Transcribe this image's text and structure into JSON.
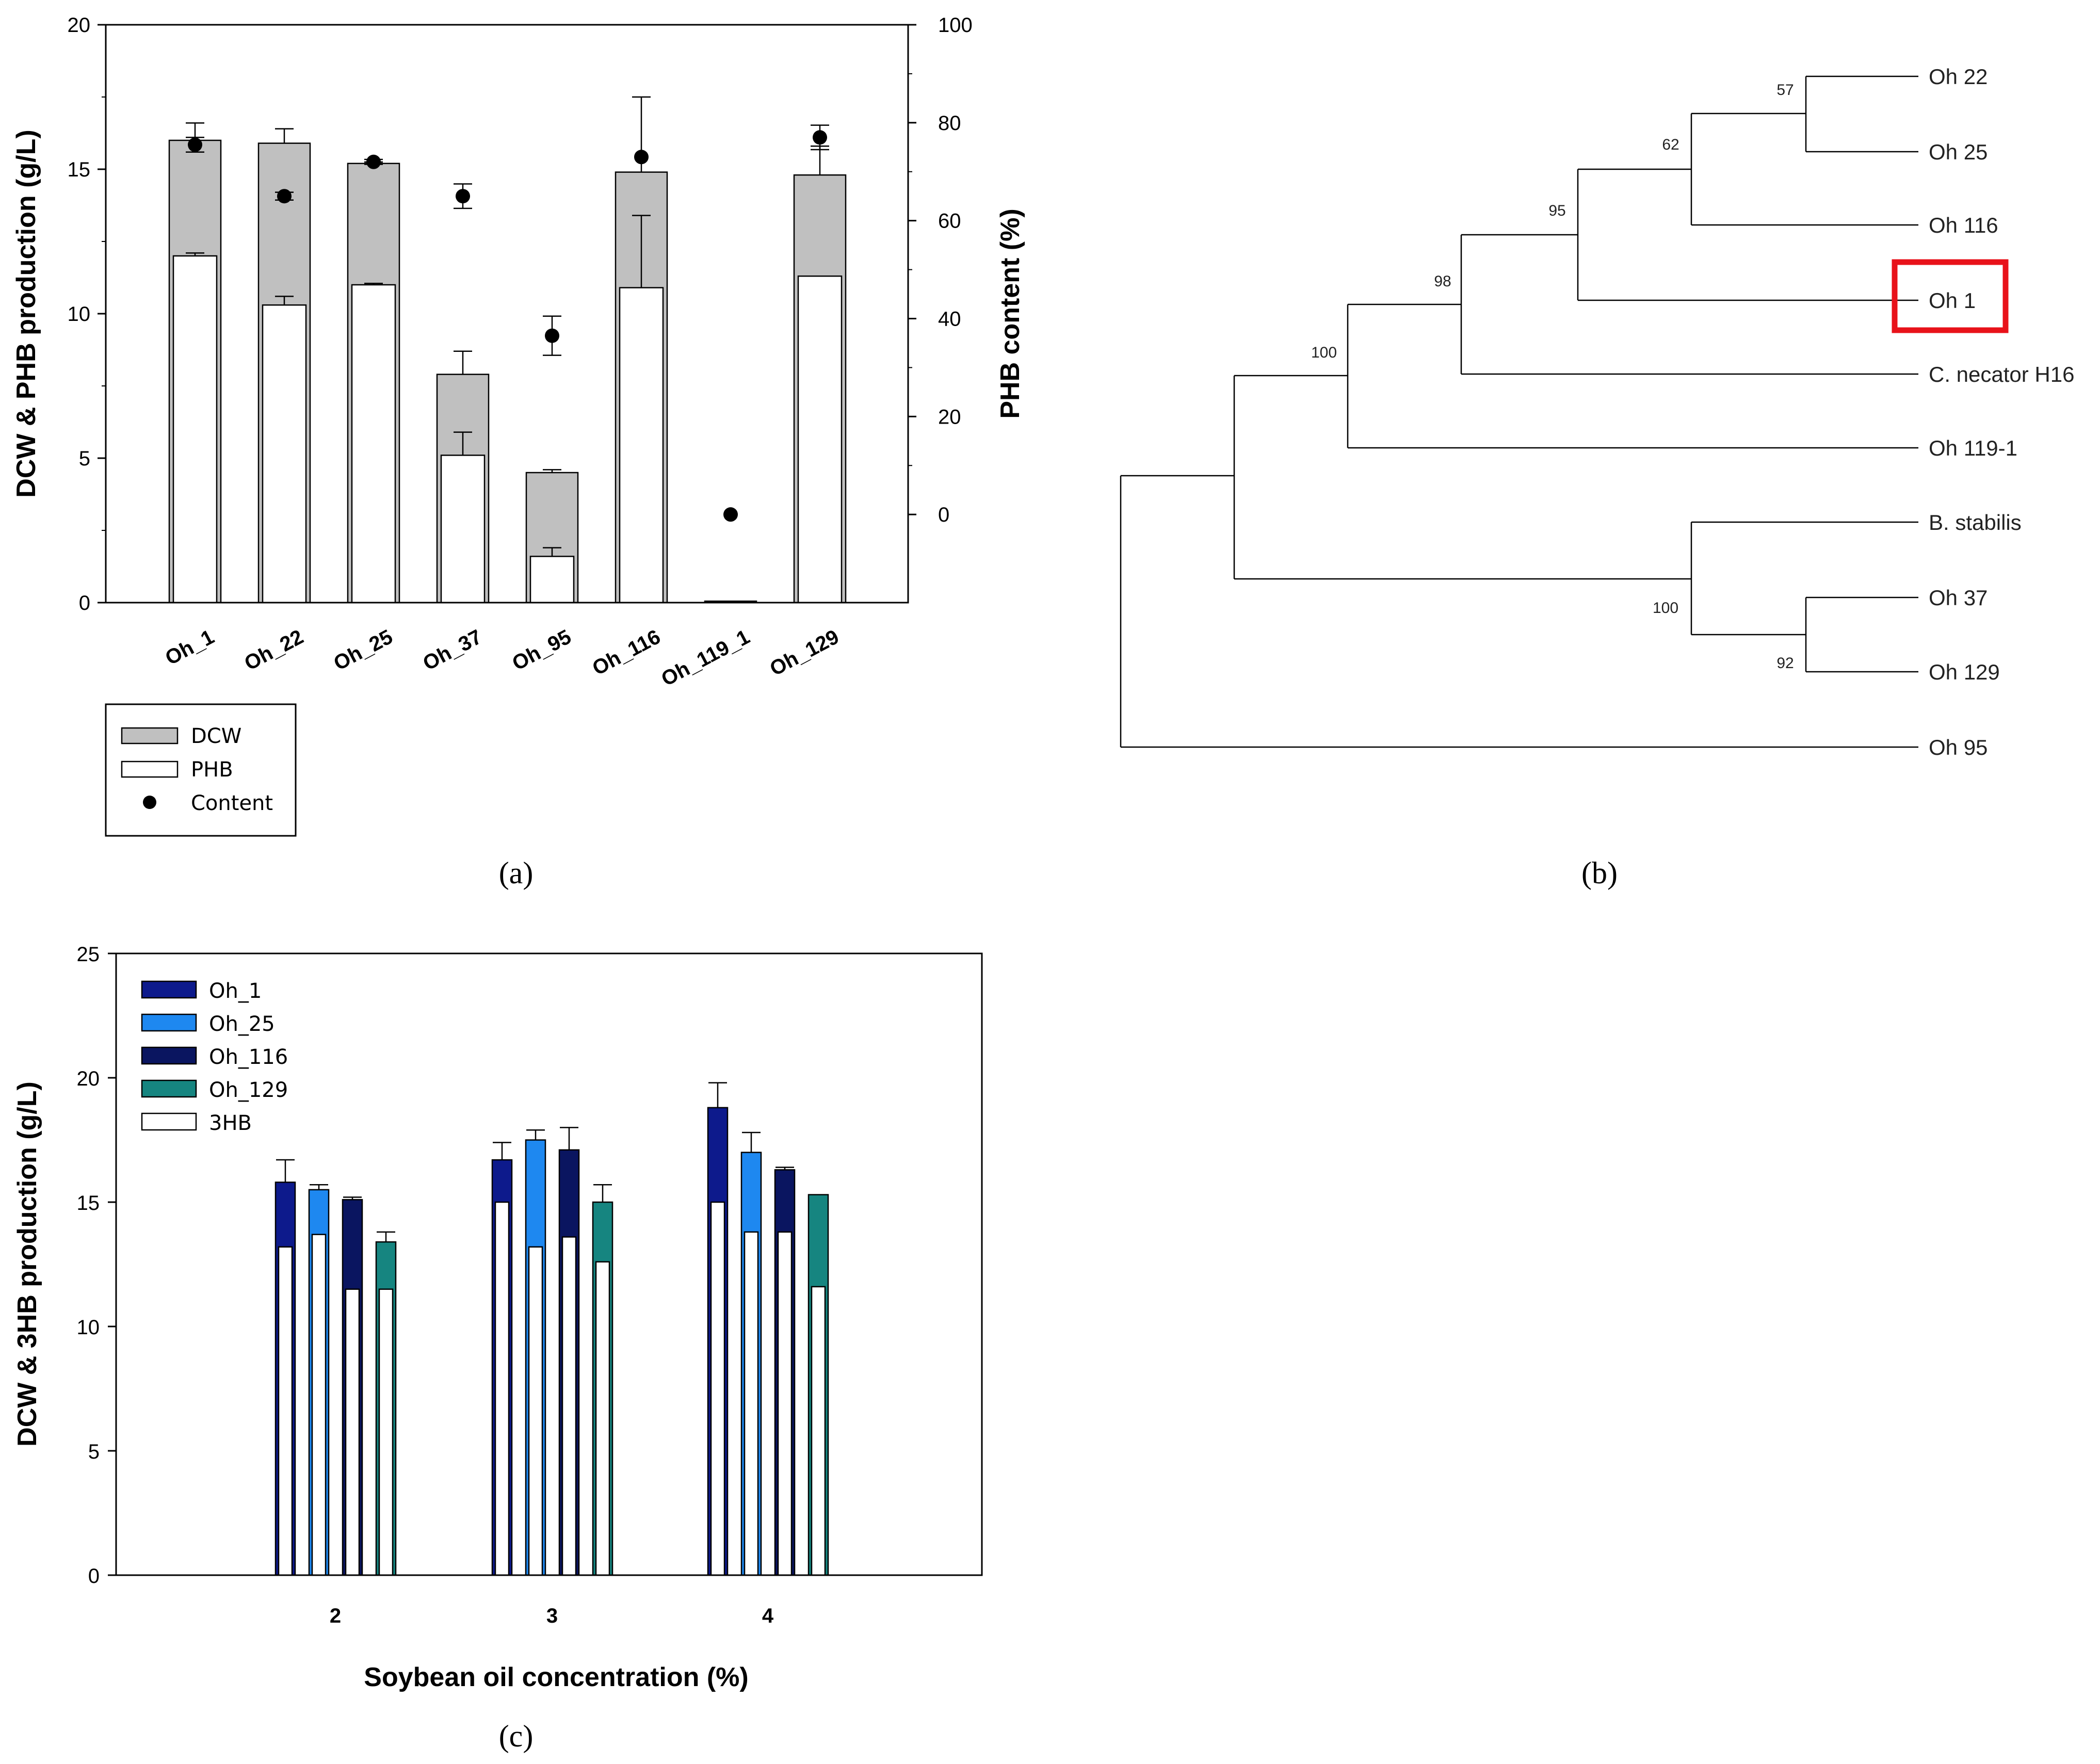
{
  "chart_data": [
    {
      "panel": "(a)",
      "type": "bar",
      "categories": [
        "Oh_1",
        "Oh_22",
        "Oh_25",
        "Oh_37",
        "Oh_95",
        "Oh_116",
        "Oh_119_1",
        "Oh_129"
      ],
      "series": [
        {
          "name": "DCW",
          "values": [
            16.0,
            15.9,
            15.2,
            7.9,
            4.5,
            14.9,
            0.05,
            14.8
          ],
          "errors": [
            0.6,
            0.5,
            0.05,
            0.8,
            0.1,
            2.6,
            0,
            1.0
          ]
        },
        {
          "name": "PHB",
          "values": [
            12.0,
            10.3,
            11.0,
            5.1,
            1.6,
            10.9,
            0.0,
            11.3
          ],
          "errors": [
            0.1,
            0.3,
            0.05,
            0.8,
            0.3,
            2.5,
            0,
            0
          ]
        },
        {
          "name": "Content",
          "axis": "right",
          "values": [
            75.5,
            65,
            72,
            65,
            36.5,
            73,
            0,
            77
          ],
          "errors": [
            1.5,
            0.8,
            0.5,
            2.5,
            4,
            0,
            0,
            2.5
          ]
        }
      ],
      "ylabel": "DCW & PHB production (g/L)",
      "ylabel_right": "PHB content (%)",
      "ylim": [
        0,
        20
      ],
      "ylim_right": [
        -18,
        100
      ],
      "yticks": [
        "0",
        "5",
        "10",
        "15",
        "20"
      ],
      "yticks_right": [
        "0",
        "20",
        "40",
        "60",
        "80",
        "100"
      ],
      "legend": [
        "DCW",
        "PHB",
        "Content"
      ]
    },
    {
      "panel": "(c)",
      "type": "bar",
      "categories": [
        "2",
        "3",
        "4"
      ],
      "series": [
        {
          "name": "Oh_1",
          "values": [
            15.8,
            16.7,
            18.8
          ],
          "errors": [
            0.9,
            0.7,
            1.0
          ],
          "threehb": [
            13.2,
            15.0,
            15.0
          ]
        },
        {
          "name": "Oh_25",
          "values": [
            15.5,
            17.5,
            17.0
          ],
          "errors": [
            0.2,
            0.4,
            0.8
          ],
          "threehb": [
            13.7,
            13.2,
            13.8
          ]
        },
        {
          "name": "Oh_116",
          "values": [
            15.1,
            17.1,
            16.3
          ],
          "errors": [
            0.1,
            0.9,
            0.1
          ],
          "threehb": [
            11.5,
            13.6,
            13.8
          ]
        },
        {
          "name": "Oh_129",
          "values": [
            13.4,
            15.0,
            15.3
          ],
          "errors": [
            0.4,
            0.7,
            0.0
          ],
          "threehb": [
            11.5,
            12.6,
            11.6
          ]
        }
      ],
      "legend": [
        "Oh_1",
        "Oh_25",
        "Oh_116",
        "Oh_129",
        "3HB"
      ],
      "xlabel": "Soybean oil concentration (%)",
      "ylabel": "DCW & 3HB production (g/L)",
      "ylim": [
        0,
        25
      ],
      "yticks": [
        "0",
        "5",
        "10",
        "15",
        "20",
        "25"
      ]
    }
  ],
  "tree": {
    "panel": "(b)",
    "leaves": [
      "Oh 22",
      "Oh 25",
      "Oh 116",
      "Oh 1",
      "C. necator H16",
      "Oh 119-1",
      "B. stabilis",
      "Oh 37",
      "Oh 129",
      "Oh 95"
    ],
    "bootstrap": [
      "57",
      "62",
      "95",
      "98",
      "100",
      "100",
      "92"
    ],
    "highlight": "Oh 1"
  },
  "captions": {
    "a": "(a)",
    "b": "(b)",
    "c": "(c)"
  },
  "colors": {
    "dcw": "#c0c0c0",
    "oh1": "#0d1a8c",
    "oh25": "#1e88f0",
    "oh116": "#0a1560",
    "oh129": "#168580",
    "highlight": "#e8121a"
  }
}
